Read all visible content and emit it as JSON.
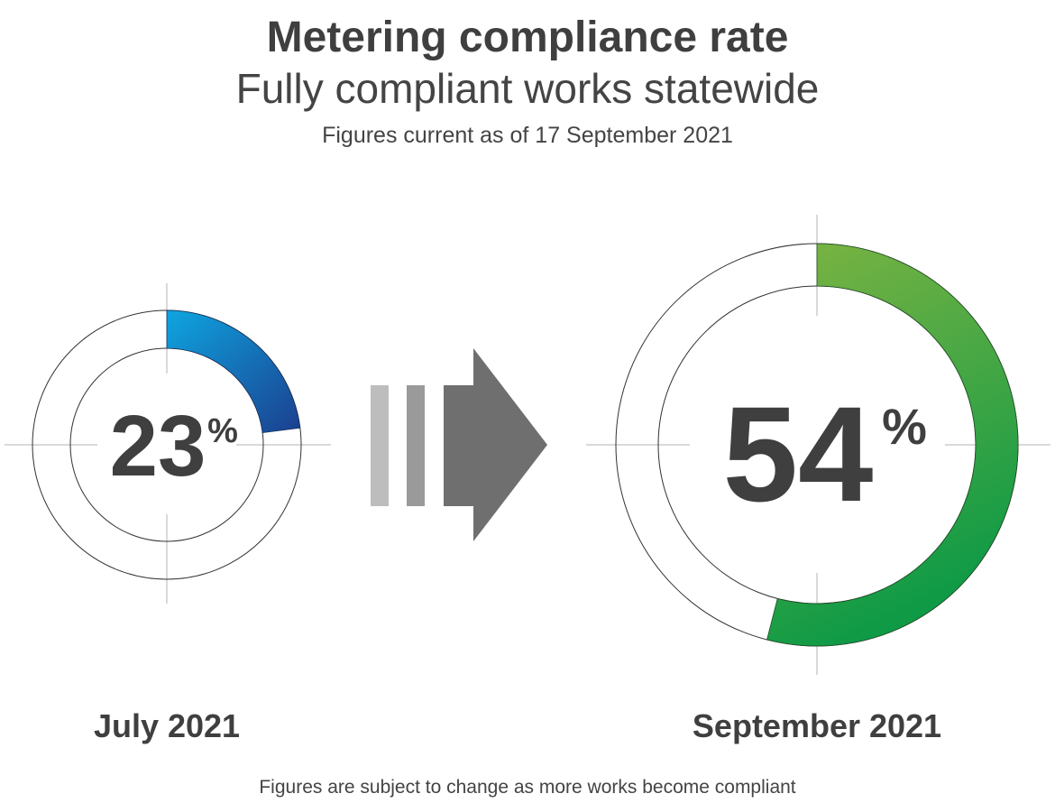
{
  "title": "Metering compliance rate",
  "subtitle": "Fully compliant works statewide",
  "note": "Figures current as of 17 September 2021",
  "footnote": "Figures are subject to change as more works become compliant",
  "chart_data": {
    "type": "donut",
    "title": "Metering compliance rate",
    "subtitle": "Fully compliant works statewide",
    "series": [
      {
        "name": "July 2021",
        "value": 23,
        "number": "23",
        "unit": "%",
        "colors": [
          "#0ea5e0",
          "#1b3f8f"
        ]
      },
      {
        "name": "September 2021",
        "value": 54,
        "number": "54",
        "unit": "%",
        "colors": [
          "#7db442",
          "#0f9a46"
        ]
      }
    ]
  }
}
